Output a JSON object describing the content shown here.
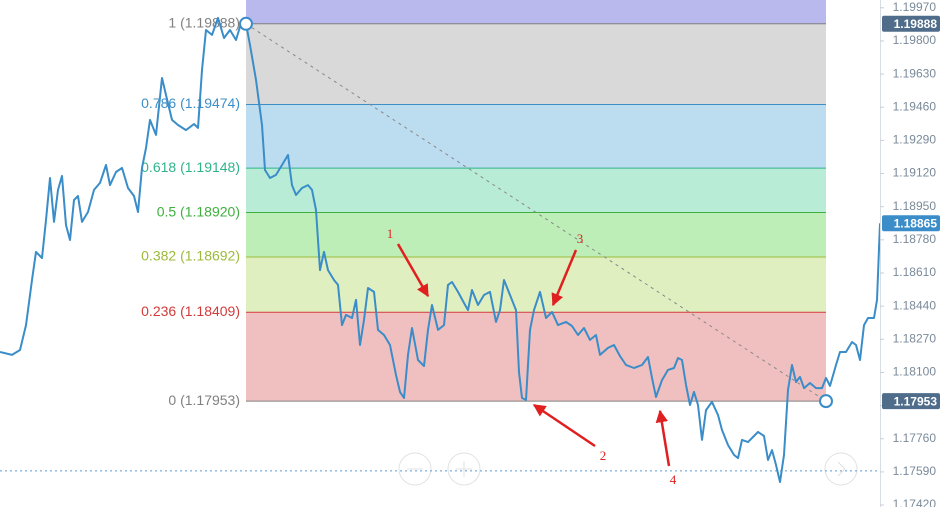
{
  "chart_data": {
    "type": "line",
    "ylim": [
      1.1741,
      1.2001
    ],
    "xlim": [
      0,
      880
    ],
    "yticks": [
      {
        "value": 1.1997,
        "label": "1.19970"
      },
      {
        "value": 1.198,
        "label": "1.19800"
      },
      {
        "value": 1.1963,
        "label": "1.19630"
      },
      {
        "value": 1.1946,
        "label": "1.19460"
      },
      {
        "value": 1.1929,
        "label": "1.19290"
      },
      {
        "value": 1.1912,
        "label": "1.19120"
      },
      {
        "value": 1.1895,
        "label": "1.18950"
      },
      {
        "value": 1.1878,
        "label": "1.18780"
      },
      {
        "value": 1.1861,
        "label": "1.18610"
      },
      {
        "value": 1.1844,
        "label": "1.18440"
      },
      {
        "value": 1.1827,
        "label": "1.18270"
      },
      {
        "value": 1.181,
        "label": "1.18100"
      },
      {
        "value": 1.1793,
        "label": "1.17930"
      },
      {
        "value": 1.1776,
        "label": "1.17760"
      },
      {
        "value": 1.1759,
        "label": "1.17590"
      },
      {
        "value": 1.1742,
        "label": "1.17420"
      }
    ],
    "series": [
      {
        "color": "#3a8dc8",
        "x": [
          0,
          12,
          20,
          26,
          32,
          36,
          42,
          46,
          50,
          54,
          58,
          62,
          66,
          70,
          74,
          78,
          82,
          88,
          94,
          100,
          106,
          110,
          116,
          122,
          128,
          134,
          138,
          142,
          146,
          150,
          156,
          162,
          166,
          172,
          178,
          186,
          194,
          198,
          202,
          206,
          212,
          218,
          224,
          230,
          236,
          242,
          246,
          250,
          256,
          262,
          265,
          270,
          276,
          282,
          288,
          292,
          296,
          302,
          308,
          312,
          316,
          320,
          324,
          328,
          334,
          338,
          342,
          346,
          352,
          356,
          360,
          364,
          368,
          374,
          378,
          384,
          390,
          396,
          400,
          404,
          408,
          412,
          418,
          424,
          428,
          432,
          438,
          444,
          448,
          452,
          458,
          464,
          468,
          472,
          478,
          484,
          490,
          496,
          500,
          504,
          510,
          516,
          519,
          522,
          526,
          530,
          534,
          540,
          546,
          552,
          558,
          566,
          572,
          578,
          584,
          590,
          596,
          600,
          608,
          614,
          620,
          626,
          634,
          642,
          648,
          652,
          656,
          662,
          668,
          674,
          678,
          682,
          686,
          690,
          694,
          698,
          702,
          706,
          712,
          718,
          722,
          728,
          734,
          738,
          742,
          748,
          754,
          758,
          764,
          768,
          772,
          776,
          780,
          784,
          788,
          792,
          796,
          800,
          804,
          810,
          816,
          822,
          826,
          830,
          836,
          840,
          846,
          852,
          856,
          860,
          864,
          868,
          874,
          877,
          880
        ],
        "values": [
          1.18205,
          1.1819,
          1.18215,
          1.18343,
          1.18574,
          1.18718,
          1.18687,
          1.18882,
          1.19097,
          1.18872,
          1.19036,
          1.19108,
          1.18856,
          1.18779,
          1.18984,
          1.19005,
          1.18872,
          1.18923,
          1.19036,
          1.19072,
          1.19164,
          1.19061,
          1.19128,
          1.19149,
          1.19046,
          1.19005,
          1.18923,
          1.19149,
          1.19251,
          1.19395,
          1.19318,
          1.1961,
          1.19523,
          1.19395,
          1.19369,
          1.19343,
          1.19374,
          1.19354,
          1.19651,
          1.19856,
          1.19831,
          1.19918,
          1.19815,
          1.19856,
          1.19805,
          1.19907,
          1.19888,
          1.19779,
          1.196,
          1.19369,
          1.19138,
          1.19097,
          1.19113,
          1.19164,
          1.19215,
          1.19061,
          1.1901,
          1.19046,
          1.19061,
          1.19036,
          1.18933,
          1.18625,
          1.18718,
          1.18625,
          1.18574,
          1.18549,
          1.18343,
          1.18395,
          1.18379,
          1.18472,
          1.18241,
          1.18369,
          1.18533,
          1.18513,
          1.18318,
          1.18292,
          1.18241,
          1.18087,
          1.18,
          1.17969,
          1.1819,
          1.18328,
          1.18164,
          1.18133,
          1.18318,
          1.18446,
          1.18318,
          1.18343,
          1.18549,
          1.18564,
          1.18513,
          1.18456,
          1.1842,
          1.18523,
          1.18446,
          1.18497,
          1.18513,
          1.18359,
          1.1842,
          1.18574,
          1.18497,
          1.1842,
          1.18102,
          1.17969,
          1.17959,
          1.18318,
          1.1842,
          1.18513,
          1.18379,
          1.1841,
          1.18343,
          1.18359,
          1.18338,
          1.18292,
          1.18328,
          1.18267,
          1.18292,
          1.1819,
          1.18226,
          1.18241,
          1.18184,
          1.18138,
          1.18123,
          1.18138,
          1.18179,
          1.18072,
          1.17974,
          1.18061,
          1.18113,
          1.18123,
          1.18174,
          1.18164,
          1.18036,
          1.17933,
          1.18,
          1.17933,
          1.17754,
          1.17907,
          1.17949,
          1.17882,
          1.17805,
          1.17728,
          1.17677,
          1.17661,
          1.17754,
          1.17743,
          1.17774,
          1.17795,
          1.17774,
          1.17651,
          1.17702,
          1.17626,
          1.17538,
          1.17677,
          1.1801,
          1.18138,
          1.18051,
          1.18077,
          1.1802,
          1.18046,
          1.1802,
          1.1802,
          1.18072,
          1.18031,
          1.18138,
          1.18205,
          1.18205,
          1.18256,
          1.18241,
          1.18164,
          1.18343,
          1.18379,
          1.18379,
          1.18472,
          1.18865
        ]
      }
    ],
    "fib": {
      "x": [
        246,
        826
      ],
      "band_colors": [
        "#b9b9ee",
        "#d9d9d9",
        "#bcdcf0",
        "#b8ecd6",
        "#bdeeb8",
        "#e0efc0",
        "#f0c0c0"
      ],
      "levels": [
        {
          "value": 1.19888,
          "label": "1 (1.19888)",
          "color": "#808080"
        },
        {
          "value": 1.19474,
          "label": "0.786 (1.19474)",
          "color": "#3d8fc6"
        },
        {
          "value": 1.19148,
          "label": "0.618 (1.19148)",
          "color": "#2fb38a"
        },
        {
          "value": 1.1892,
          "label": "0.5 (1.18920)",
          "color": "#3fb03f"
        },
        {
          "value": 1.18692,
          "label": "0.382 (1.18692)",
          "color": "#9cba3a"
        },
        {
          "value": 1.18409,
          "label": "0.236 (1.18409)",
          "color": "#d33a3a"
        },
        {
          "value": 1.17953,
          "label": "0 (1.17953)",
          "color": "#808080"
        }
      ]
    },
    "price_tags": [
      {
        "value": 1.19888,
        "color": "#4f6d8a"
      },
      {
        "value": 1.18865,
        "color": "#3a8dc8"
      },
      {
        "value": 1.17953,
        "color": "#4f6d8a"
      }
    ],
    "hlines": [
      {
        "value": 1.17595,
        "color": "#5b9bd5"
      }
    ],
    "annotations": [
      "1",
      "2",
      "3",
      "4"
    ],
    "annotation_color": "#e02020"
  }
}
